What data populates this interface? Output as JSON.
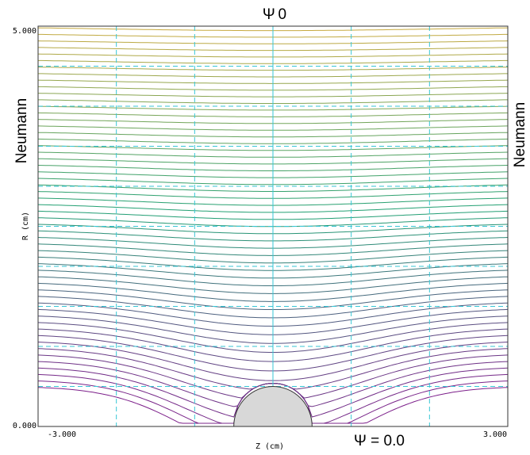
{
  "chart_data": {
    "type": "line",
    "title": "",
    "top_boundary_label": "Ψ 0",
    "bottom_boundary_label": "Ψ = 0.0",
    "left_boundary_label": "Neumann",
    "right_boundary_label": "Neumann",
    "xlabel": "Z (cm)",
    "ylabel": "R (cm)",
    "xlim": [
      -3.0,
      3.0
    ],
    "ylim": [
      0.0,
      5.0
    ],
    "x_tick_labels": [
      {
        "value": -3.0,
        "label": "-3.000"
      },
      {
        "value": 3.0,
        "label": "3.000"
      }
    ],
    "y_tick_labels": [
      {
        "value": 0.0,
        "label": "0.000"
      },
      {
        "value": 5.0,
        "label": "5.000"
      }
    ],
    "grid": {
      "vertical_z": [
        -2.0,
        -1.0,
        0.0,
        1.0,
        2.0
      ],
      "horizontal_r": [
        0.5,
        1.0,
        1.5,
        2.0,
        2.5,
        3.0,
        3.5,
        4.0,
        4.5
      ],
      "color": "#36c6d6",
      "style": "dashed"
    },
    "electrode": {
      "shape": "hemisphere",
      "center_z": 0.0,
      "radius": 0.5,
      "fill": "#d8d8d8",
      "stroke": "#333333"
    },
    "contours": {
      "count": 56,
      "r_far_min": 0.5,
      "r_far_max": 5.0,
      "color_low": "#7c1f8a",
      "color_mid": "#20a074",
      "color_high": "#c7aa40"
    },
    "colors": {
      "frame": "#333333",
      "background": "#ffffff"
    }
  }
}
